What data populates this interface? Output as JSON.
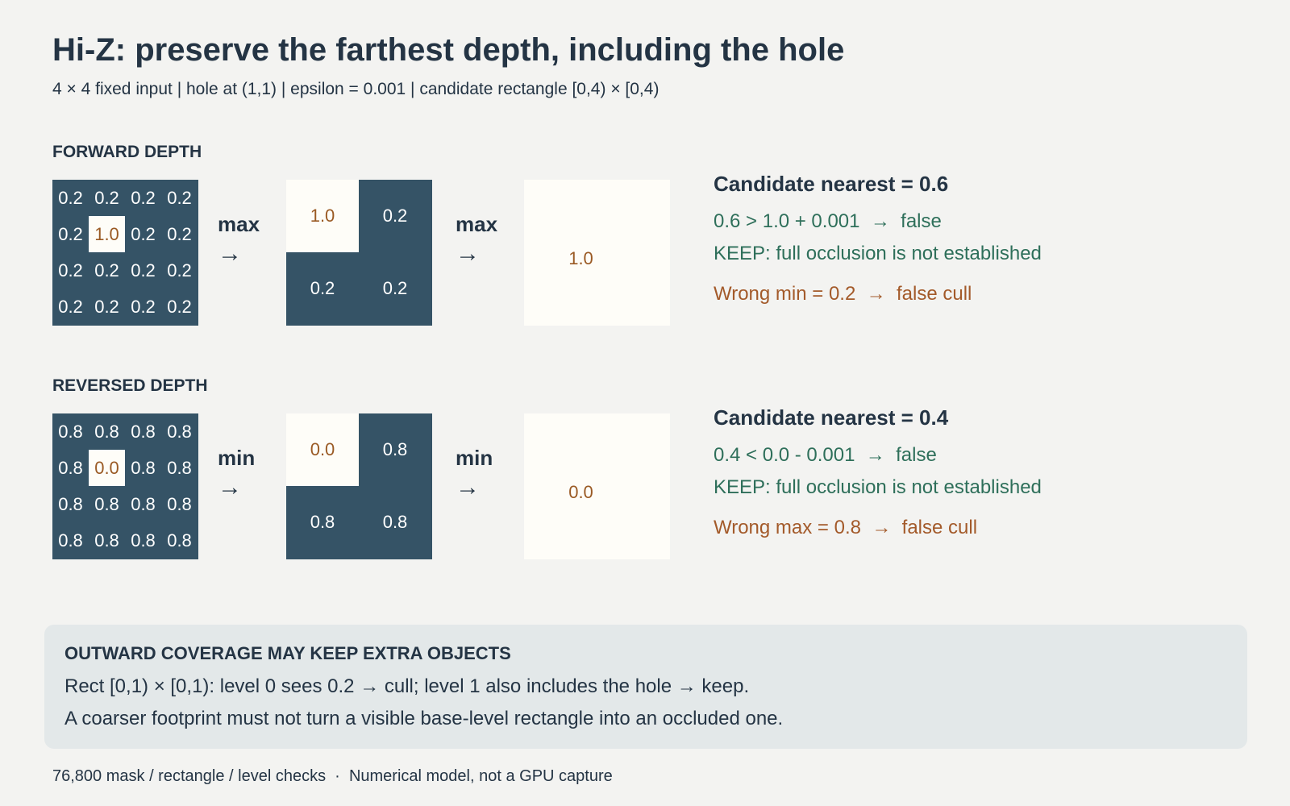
{
  "title": "Hi-Z: preserve the farthest depth, including the hole",
  "subtitle": "4 × 4 fixed input  |  hole at (1,1)  |  epsilon = 0.001  |  candidate rectangle [0,4) × [0,4)",
  "forward": {
    "label": "FORWARD DEPTH",
    "grid": [
      [
        "0.2",
        "0.2",
        "0.2",
        "0.2"
      ],
      [
        "0.2",
        "1.0",
        "0.2",
        "0.2"
      ],
      [
        "0.2",
        "0.2",
        "0.2",
        "0.2"
      ],
      [
        "0.2",
        "0.2",
        "0.2",
        "0.2"
      ]
    ],
    "op1": "max",
    "op2": "max",
    "arrow": "→",
    "level1": [
      "1.0",
      "0.2",
      "0.2",
      "0.2"
    ],
    "level2": "1.0",
    "candidate": "Candidate nearest = 0.6",
    "comparison": "0.6 > 1.0 + 0.001  →  false",
    "keep": "KEEP: full occlusion is not established",
    "wrong": "Wrong min = 0.2  →  false cull"
  },
  "reversed": {
    "label": "REVERSED DEPTH",
    "grid": [
      [
        "0.8",
        "0.8",
        "0.8",
        "0.8"
      ],
      [
        "0.8",
        "0.0",
        "0.8",
        "0.8"
      ],
      [
        "0.8",
        "0.8",
        "0.8",
        "0.8"
      ],
      [
        "0.8",
        "0.8",
        "0.8",
        "0.8"
      ]
    ],
    "op1": "min",
    "op2": "min",
    "arrow": "→",
    "level1": [
      "0.0",
      "0.8",
      "0.8",
      "0.8"
    ],
    "level2": "0.0",
    "candidate": "Candidate nearest = 0.4",
    "comparison": "0.4 < 0.0 - 0.001  →  false",
    "keep": "KEEP: full occlusion is not established",
    "wrong": "Wrong max = 0.8  →  false cull"
  },
  "panel": {
    "title": "OUTWARD COVERAGE MAY KEEP EXTRA OBJECTS",
    "line1": "Rect [0,1) × [0,1): level 0 sees 0.2 → cull; level 1 also includes the hole → keep.",
    "line2": "A coarser footprint must not turn a visible base-level rectangle into an occluded one."
  },
  "footer": "76,800 mask / rectangle / level checks  ·  Numerical model, not a GPU capture",
  "colors": {
    "dark_cell": "#355366",
    "hole_cell": "#fefdf8",
    "hole_text": "#9a5a24",
    "keep_text": "#2e6f5a",
    "wrong_text": "#a35a2a",
    "panel_bg": "#e3e8e9"
  }
}
